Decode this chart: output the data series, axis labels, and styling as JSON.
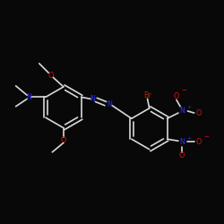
{
  "bg_color": "#080808",
  "bond_color": "#d8d8d8",
  "bond_width": 1.2,
  "dbo": 0.025,
  "N_color": "#3333ff",
  "O_color": "#dd1111",
  "Br_color": "#bb2200",
  "figsize": [
    2.5,
    2.5
  ],
  "dpi": 100,
  "xlim": [
    -1.1,
    1.3
  ],
  "ylim": [
    -1.0,
    1.0
  ]
}
